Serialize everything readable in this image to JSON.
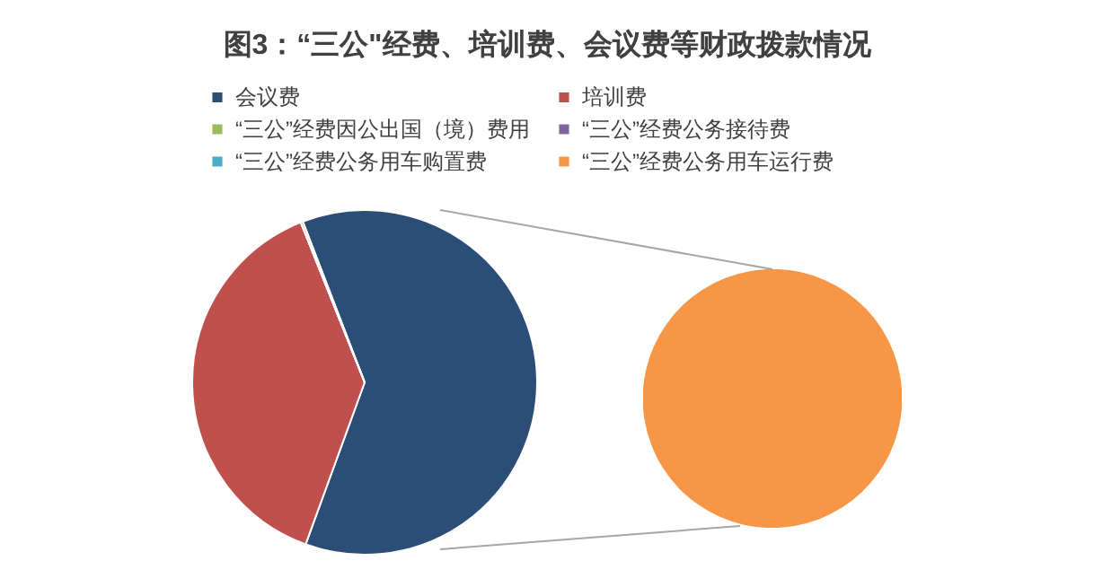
{
  "chart_data": [
    {
      "type": "pie",
      "title": "图3：“三公\"经费、培训费、会议费等财政拨款情况",
      "categories": [
        "会议费",
        "培训费",
        "“三公”经费因公出国（境）费用",
        "“三公”经费公务接待费",
        "“三公”经费公务用车购置费",
        "“三公”经费公务用车运行费"
      ],
      "values": [
        61.4,
        38.4,
        0,
        0,
        0,
        0.2
      ],
      "colors": [
        "#2c4d75",
        "#c0504d",
        "#9bbb59",
        "#8064a2",
        "#4bacc6",
        "#f79646"
      ],
      "legend": "top"
    },
    {
      "type": "pie",
      "categories": [
        null,
        null,
        null,
        null
      ],
      "values": [
        0,
        0,
        0,
        100
      ],
      "colors": [
        "#9bbb59",
        "#8064a2",
        "#4bacc6",
        "#f79646"
      ]
    }
  ]
}
